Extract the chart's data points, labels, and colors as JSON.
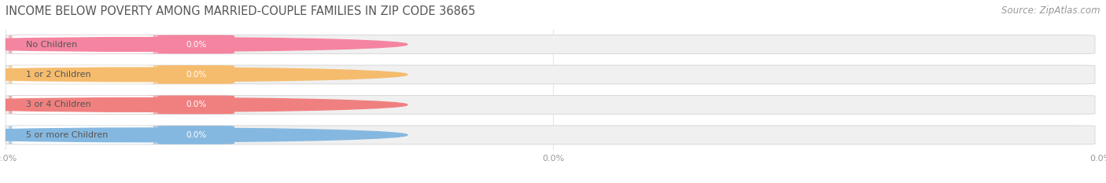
{
  "title": "INCOME BELOW POVERTY AMONG MARRIED-COUPLE FAMILIES IN ZIP CODE 36865",
  "source": "Source: ZipAtlas.com",
  "categories": [
    "No Children",
    "1 or 2 Children",
    "3 or 4 Children",
    "5 or more Children"
  ],
  "values": [
    0.0,
    0.0,
    0.0,
    0.0
  ],
  "bar_colors": [
    "#f584a0",
    "#f5bc6e",
    "#f08080",
    "#85b8e0"
  ],
  "background_color": "#ffffff",
  "track_color": "#f0f0f0",
  "track_border_color": "#d8d8d8",
  "title_color": "#555555",
  "source_color": "#999999",
  "label_text_color": "#555555",
  "value_text_color": "#ffffff",
  "tick_label_color": "#999999",
  "title_fontsize": 10.5,
  "source_fontsize": 8.5,
  "label_fontsize": 8,
  "value_fontsize": 7.5,
  "tick_fontsize": 8,
  "figsize": [
    14.06,
    2.33
  ],
  "dpi": 100
}
